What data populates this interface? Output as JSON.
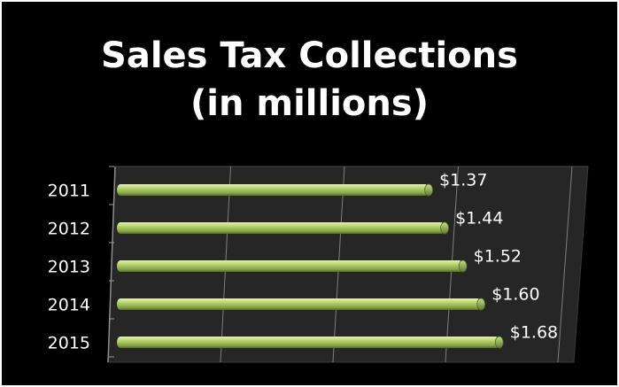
{
  "chart_data": {
    "type": "bar",
    "orientation": "horizontal",
    "title": "Sales Tax Collections\n(in millions)",
    "title_lines": [
      "Sales Tax Collections",
      "(in millions)"
    ],
    "categories": [
      "2011",
      "2012",
      "2013",
      "2014",
      "2015"
    ],
    "values": [
      1.37,
      1.44,
      1.52,
      1.6,
      1.68
    ],
    "data_labels": [
      "$1.37",
      "$1.44",
      "$1.52",
      "$1.60",
      "$1.68"
    ],
    "xlim": [
      0,
      2
    ],
    "grid": true,
    "legend": "none"
  },
  "colors": {
    "background": "#000000",
    "bar": "#9bbb59",
    "text": "#ffffff",
    "plot_floor": "#262626",
    "gridline": "#7f7f7f"
  }
}
